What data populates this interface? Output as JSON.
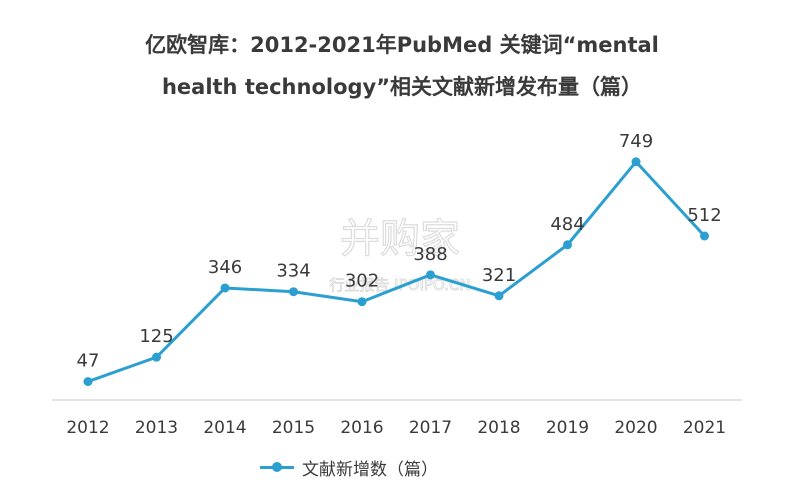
{
  "title": {
    "line1": "亿欧智库：2012-2021年PubMed 关键词“mental",
    "line2": "health technology”相关文献新增发布量（篇）"
  },
  "watermark": {
    "main": " 并购家",
    "sub": "行业报告 IPOIPO.CN"
  },
  "colors": {
    "series": "#2a9fd0",
    "axis": "#d4d4d4",
    "text": "#3a3a3a",
    "watermark": "#e3e3e3"
  },
  "chart_data": {
    "type": "line",
    "categories": [
      "2012",
      "2013",
      "2014",
      "2015",
      "2016",
      "2017",
      "2018",
      "2019",
      "2020",
      "2021"
    ],
    "series": [
      {
        "name": "文献新增数（篇）",
        "values": [
          47,
          125,
          346,
          334,
          302,
          388,
          321,
          484,
          749,
          512
        ],
        "data_labels": [
          "47",
          "125",
          "346",
          "334",
          "302",
          "388",
          "321",
          "484",
          "749",
          "512"
        ]
      }
    ],
    "xlabel": "",
    "ylabel": "",
    "ylim": [
      0,
      800
    ],
    "grid": false,
    "legend": "bottom-left",
    "markers": true
  }
}
